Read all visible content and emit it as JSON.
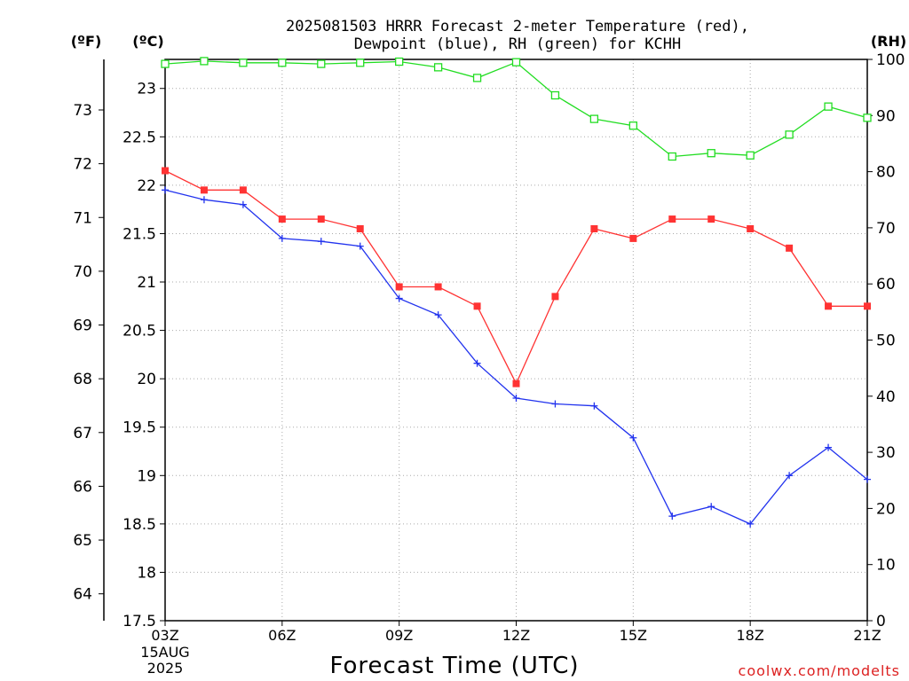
{
  "chart_data": {
    "type": "line",
    "title_line1": "2025081503 HRRR Forecast 2-meter Temperature (red),",
    "title_line2": "Dewpoint (blue), RH (green) for KCHH",
    "xlabel": "Forecast Time (UTC)",
    "left_units": {
      "f": "(ºF)",
      "c": "(ºC)"
    },
    "right_units": "(RH)",
    "credit": "coolwx.com/modelts",
    "x": [
      "03Z",
      "04Z",
      "05Z",
      "06Z",
      "07Z",
      "08Z",
      "09Z",
      "10Z",
      "11Z",
      "12Z",
      "13Z",
      "14Z",
      "15Z",
      "16Z",
      "17Z",
      "18Z",
      "19Z",
      "20Z",
      "21Z"
    ],
    "x_ticks": [
      "03Z",
      "06Z",
      "09Z",
      "12Z",
      "15Z",
      "18Z",
      "21Z"
    ],
    "x_date_lines": [
      "15AUG",
      "2025"
    ],
    "ylim_c": [
      17.5,
      23.3
    ],
    "y_ticks_c": [
      "17.5",
      "18",
      "18.5",
      "19",
      "19.5",
      "20",
      "20.5",
      "21",
      "21.5",
      "22",
      "22.5",
      "23"
    ],
    "y_ticks_f": [
      "64",
      "65",
      "66",
      "67",
      "68",
      "69",
      "70",
      "71",
      "72",
      "73"
    ],
    "ylim_rh": [
      0,
      100
    ],
    "y_ticks_rh": [
      "0",
      "10",
      "20",
      "30",
      "40",
      "50",
      "60",
      "70",
      "80",
      "90",
      "100"
    ],
    "grid": true,
    "colors": {
      "temperature": "#ff3333",
      "dewpoint": "#2233ee",
      "rh": "#22dd22",
      "credit": "#dd2222"
    },
    "series": [
      {
        "key": "temperature",
        "axis": "c",
        "marker": "square-filled",
        "values": [
          22.15,
          21.95,
          21.95,
          21.65,
          21.65,
          21.55,
          20.95,
          20.95,
          20.75,
          19.95,
          20.85,
          21.55,
          21.45,
          21.65,
          21.65,
          21.55,
          21.35,
          20.75,
          20.75
        ]
      },
      {
        "key": "dewpoint",
        "axis": "c",
        "marker": "plus",
        "values": [
          21.95,
          21.85,
          21.8,
          21.45,
          21.42,
          21.37,
          20.83,
          20.66,
          20.16,
          19.8,
          19.74,
          19.72,
          19.39,
          18.58,
          18.68,
          18.5,
          19.0,
          19.29,
          18.96
        ]
      },
      {
        "key": "rh",
        "axis": "rh",
        "marker": "square-open",
        "values": [
          99.2,
          99.7,
          99.4,
          99.4,
          99.2,
          99.4,
          99.6,
          98.6,
          96.7,
          99.5,
          93.6,
          89.4,
          88.2,
          82.7,
          83.3,
          82.9,
          86.6,
          91.6,
          89.6
        ]
      }
    ]
  }
}
